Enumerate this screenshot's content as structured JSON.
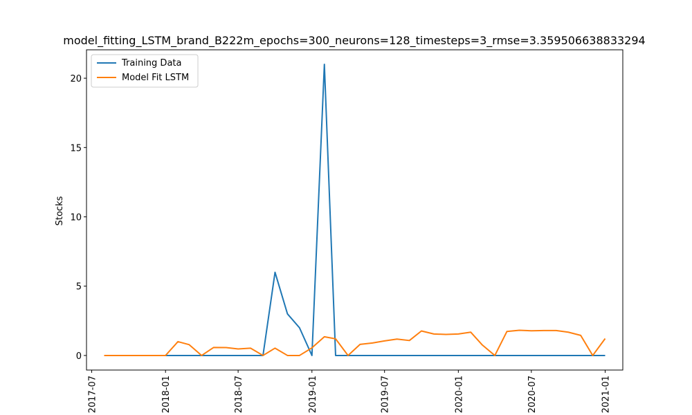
{
  "chart_data": {
    "type": "line",
    "title": "model_fitting_LSTM_brand_B222m_epochs=300_neurons=128_timesteps=3_rmse=3.359506638833294",
    "xlabel": "",
    "ylabel": "Stocks",
    "x": [
      "2017-08",
      "2017-09",
      "2017-10",
      "2017-11",
      "2017-12",
      "2018-01",
      "2018-02",
      "2018-03",
      "2018-04",
      "2018-05",
      "2018-06",
      "2018-07",
      "2018-08",
      "2018-09",
      "2018-10",
      "2018-11",
      "2018-12",
      "2019-01",
      "2019-02",
      "2019-03",
      "2019-04",
      "2019-05",
      "2019-06",
      "2019-07",
      "2019-08",
      "2019-09",
      "2019-10",
      "2019-11",
      "2019-12",
      "2020-01",
      "2020-02",
      "2020-03",
      "2020-04",
      "2020-05",
      "2020-06",
      "2020-07",
      "2020-08",
      "2020-09",
      "2020-10",
      "2020-11",
      "2020-12",
      "2021-01"
    ],
    "series": [
      {
        "name": "Training Data",
        "color": "#1f77b4",
        "values": [
          0,
          0,
          0,
          0,
          0,
          0,
          0,
          0,
          0,
          0,
          0,
          0,
          0,
          0,
          6,
          3,
          2,
          0,
          21,
          0,
          0,
          0,
          0,
          0,
          0,
          0,
          0,
          0,
          0,
          0,
          0,
          0,
          0,
          0,
          0,
          0,
          0,
          0,
          0,
          0,
          0,
          0
        ]
      },
      {
        "name": "Model Fit LSTM",
        "color": "#ff7f0e",
        "values": [
          0,
          0,
          0,
          0,
          0,
          0,
          1.0,
          0.78,
          0,
          0.58,
          0.57,
          0.47,
          0.53,
          0,
          0.53,
          0,
          0,
          0.55,
          1.35,
          1.2,
          0,
          0.8,
          0.9,
          1.05,
          1.18,
          1.08,
          1.77,
          1.55,
          1.52,
          1.55,
          1.68,
          0.75,
          0,
          1.73,
          1.82,
          1.78,
          1.8,
          1.8,
          1.68,
          1.45,
          0,
          1.22
        ]
      }
    ],
    "xticks": [
      "2017-07",
      "2018-01",
      "2018-07",
      "2019-01",
      "2019-07",
      "2020-01",
      "2020-07",
      "2021-01"
    ],
    "yticks": [
      0,
      5,
      10,
      15,
      20
    ],
    "ylim": [
      -1.05,
      22.05
    ],
    "xlim": [
      "2017-06-18",
      "2021-02-14"
    ],
    "legend": "top-left",
    "grid": false
  }
}
